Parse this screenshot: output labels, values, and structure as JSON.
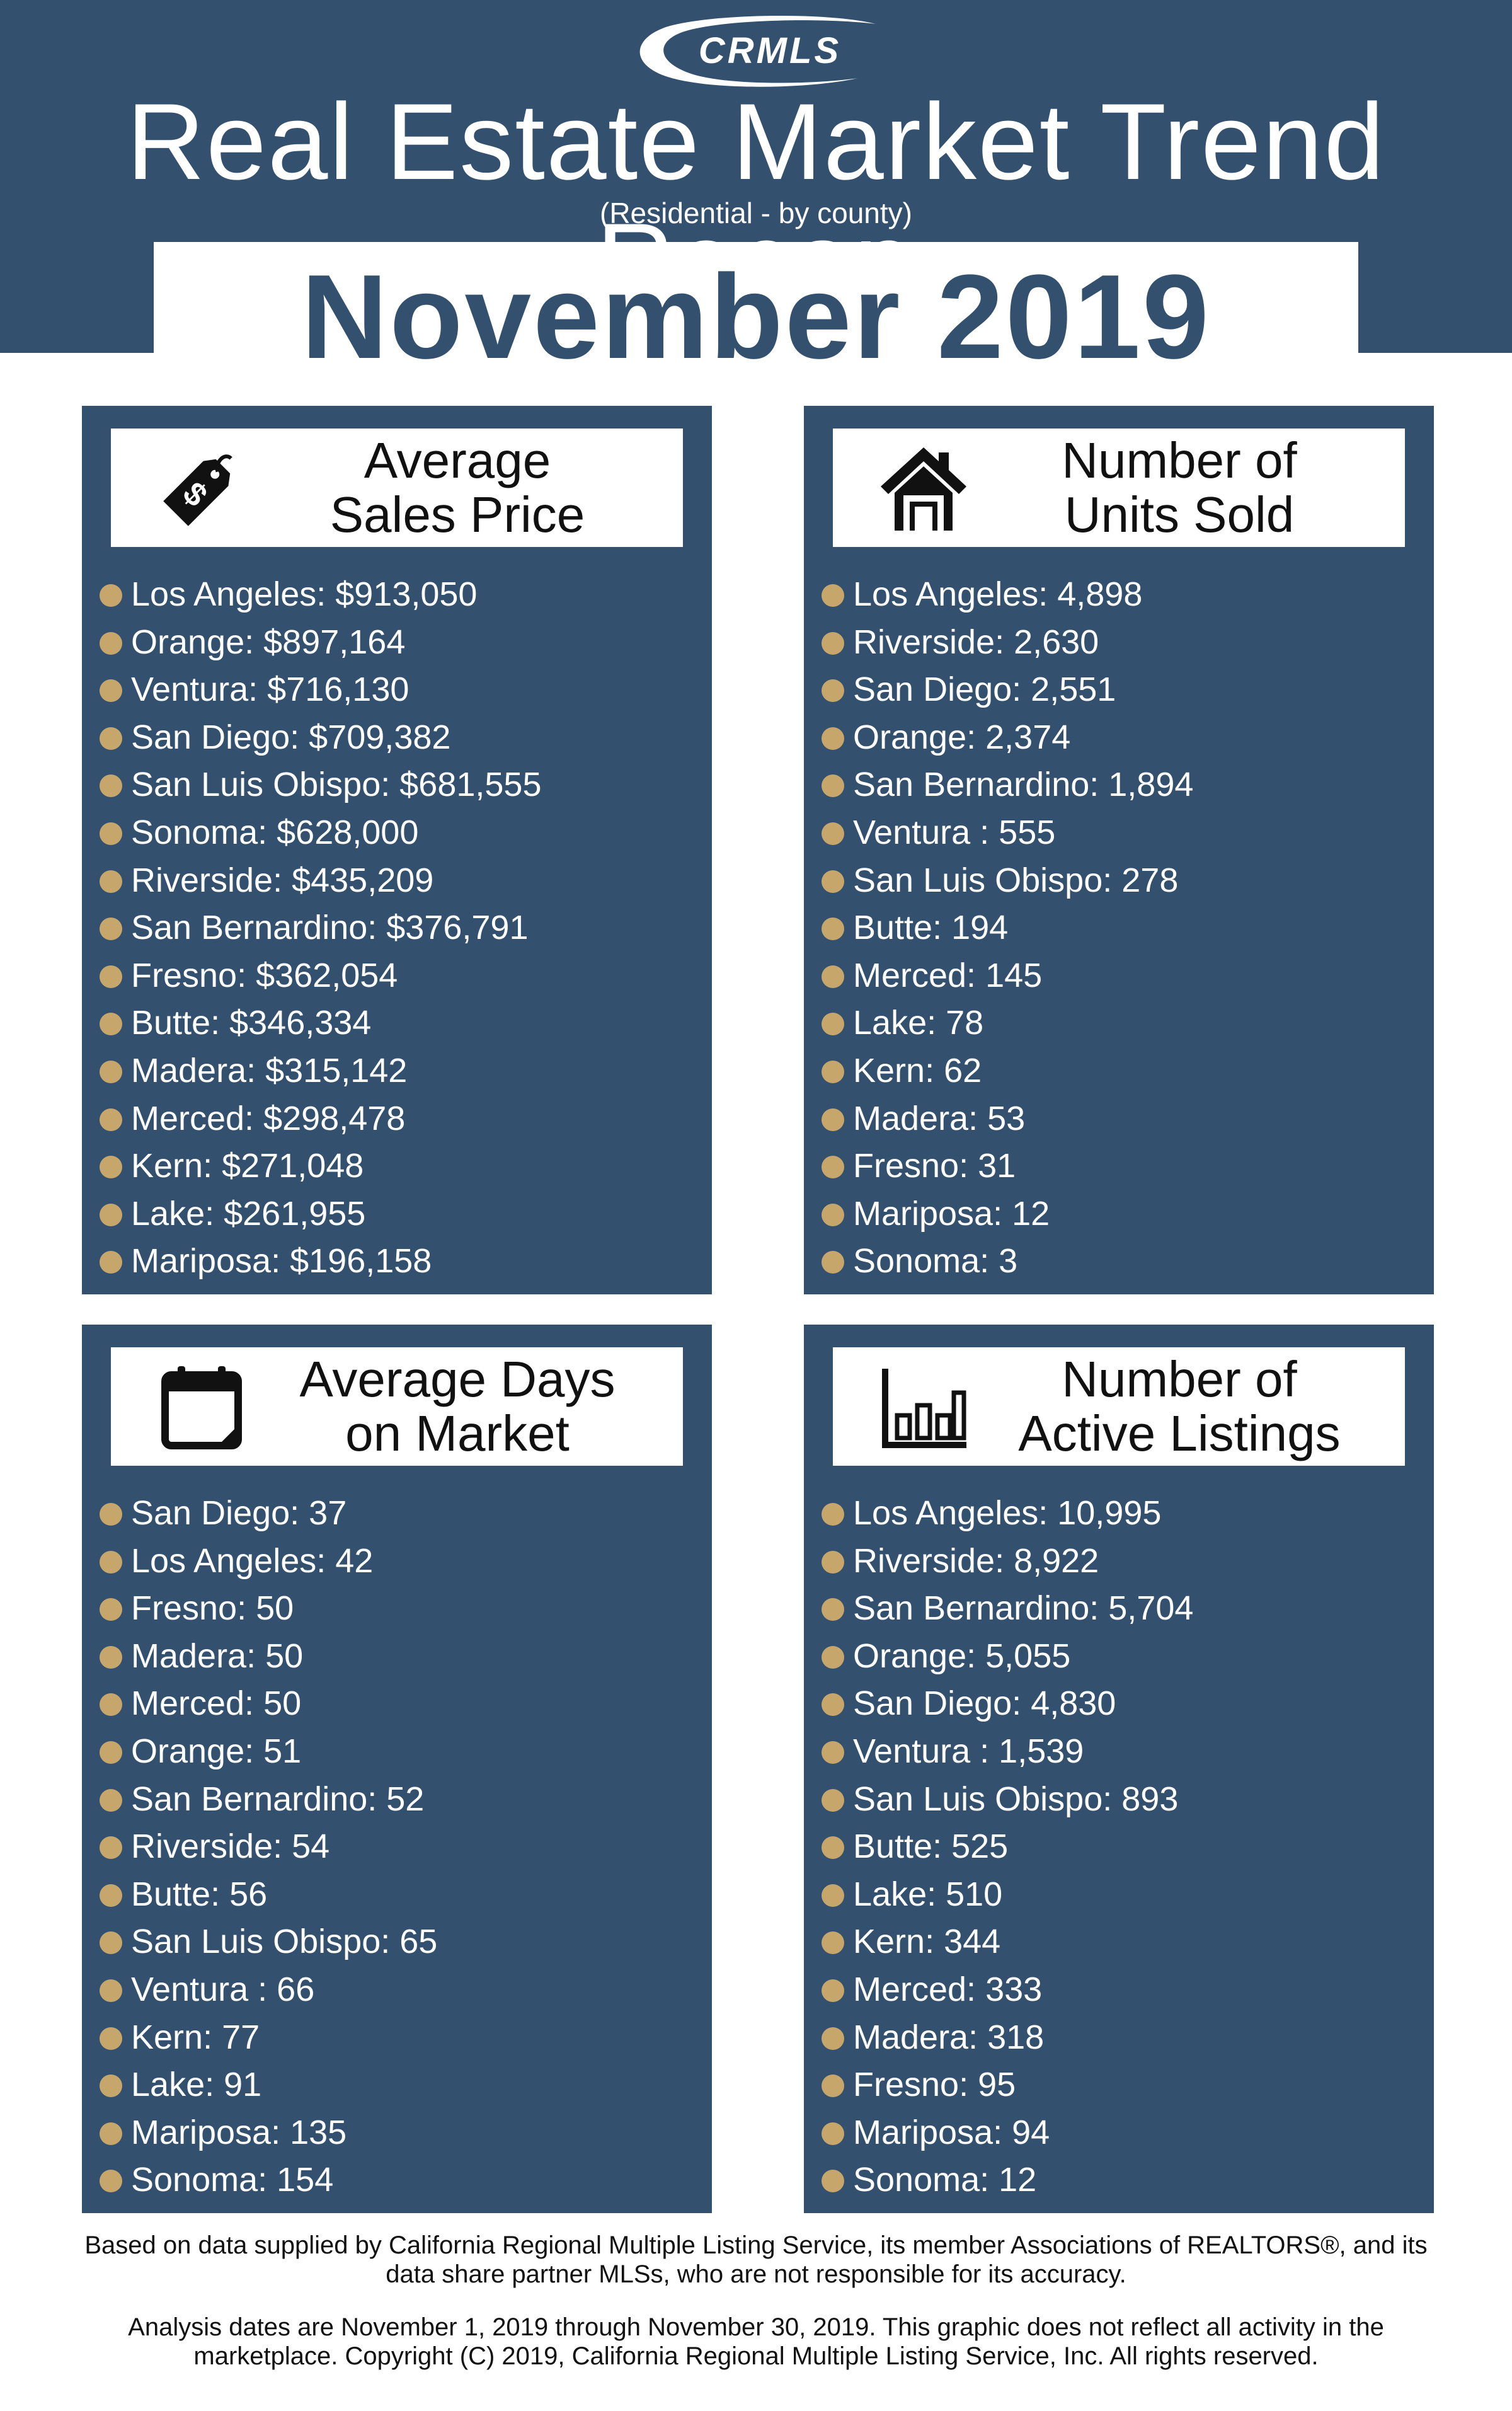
{
  "header": {
    "logo_text": "CRMLS",
    "title": "Real Estate Market Trend Recap",
    "subtitle": "(Residential - by county)",
    "period": "November 2019"
  },
  "colors": {
    "navy": "#33516f",
    "bullet_gold": "#c7a66b",
    "white": "#ffffff"
  },
  "panels": {
    "avg_sales_price": {
      "icon": "price-tag-icon",
      "heading_line1": "Average",
      "heading_line2": "Sales Price",
      "items": [
        "Los Angeles: $913,050",
        "Orange: $897,164",
        "Ventura: $716,130",
        "San Diego: $709,382",
        "San Luis Obispo: $681,555",
        "Sonoma: $628,000",
        "Riverside: $435,209",
        "San Bernardino: $376,791",
        "Fresno: $362,054",
        "Butte: $346,334",
        "Madera: $315,142",
        "Merced: $298,478",
        "Kern: $271,048",
        "Lake: $261,955",
        "Mariposa: $196,158"
      ]
    },
    "units_sold": {
      "icon": "house-icon",
      "heading_line1": "Number of",
      "heading_line2": "Units Sold",
      "items": [
        "Los Angeles: 4,898",
        "Riverside: 2,630",
        "San Diego: 2,551",
        "Orange: 2,374",
        "San Bernardino: 1,894",
        "Ventura : 555",
        "San Luis Obispo: 278",
        "Butte: 194",
        "Merced: 145",
        "Lake: 78",
        "Kern: 62",
        "Madera: 53",
        "Fresno: 31",
        "Mariposa: 12",
        "Sonoma: 3"
      ]
    },
    "avg_days_on_market": {
      "icon": "calendar-icon",
      "heading_line1": "Average Days",
      "heading_line2": "on Market",
      "items": [
        "San Diego: 37",
        "Los Angeles: 42",
        "Fresno: 50",
        "Madera: 50",
        "Merced: 50",
        "Orange: 51",
        "San Bernardino: 52",
        "Riverside: 54",
        "Butte: 56",
        "San Luis Obispo: 65",
        "Ventura : 66",
        "Kern: 77",
        "Lake: 91",
        "Mariposa: 135",
        "Sonoma: 154"
      ]
    },
    "active_listings": {
      "icon": "bar-chart-icon",
      "heading_line1": "Number of",
      "heading_line2": "Active Listings",
      "items": [
        "Los Angeles: 10,995",
        "Riverside: 8,922",
        "San Bernardino: 5,704",
        "Orange: 5,055",
        "San Diego: 4,830",
        "Ventura : 1,539",
        "San Luis Obispo: 893",
        "Butte: 525",
        "Lake: 510",
        "Kern: 344",
        "Merced: 333",
        "Madera: 318",
        "Fresno: 95",
        "Mariposa: 94",
        "Sonoma: 12"
      ]
    }
  },
  "footer": {
    "source_note": "Based on data supplied by California Regional Multiple Listing Service, its member Associations of REALTORS®, and its data share partner MLSs, who are not responsible for its accuracy.",
    "analysis_note": "Analysis dates are November 1, 2019 through November 30, 2019. This graphic does not reflect all activity in the marketplace. Copyright (C) 2019, California Regional Multiple Listing Service, Inc. All rights reserved."
  }
}
